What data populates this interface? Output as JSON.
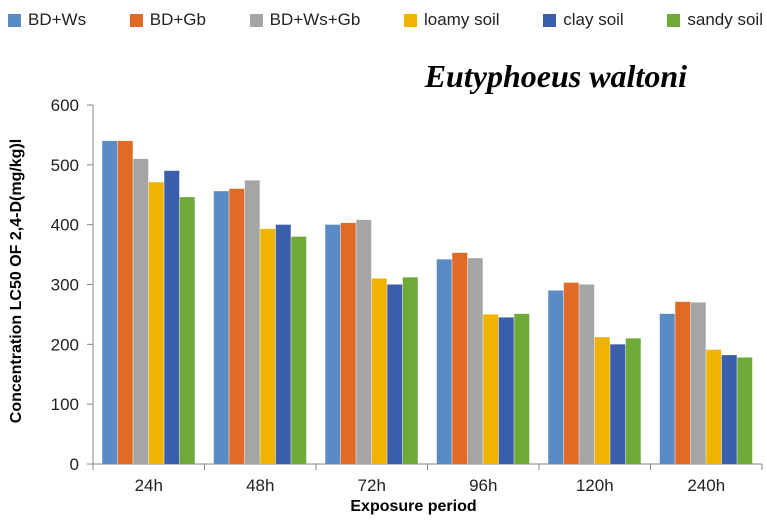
{
  "chart_data": {
    "type": "bar",
    "title": "Eutyphoeus waltoni",
    "xlabel": "Exposure period",
    "ylabel": "Concentration LC50 OF 2,4-D(mg/kg)l",
    "ylim": [
      0,
      600
    ],
    "yticks": [
      "0",
      "100",
      "200",
      "300",
      "400",
      "500",
      "600"
    ],
    "grid": false,
    "legend_position": "top",
    "categories": [
      "24h",
      "48h",
      "72h",
      "96h",
      "120h",
      "240h"
    ],
    "series": [
      {
        "name": "BD+Ws",
        "color": "#5B8BC4",
        "values": [
          540,
          456,
          400,
          342,
          290,
          251
        ]
      },
      {
        "name": "BD+Gb",
        "color": "#E06A26",
        "values": [
          540,
          460,
          403,
          353,
          303,
          271
        ]
      },
      {
        "name": "BD+Ws+Gb",
        "color": "#A5A5A5",
        "values": [
          510,
          474,
          408,
          344,
          300,
          270
        ]
      },
      {
        "name": "loamy soil",
        "color": "#F0B400",
        "values": [
          471,
          393,
          310,
          250,
          212,
          191
        ]
      },
      {
        "name": "clay soil",
        "color": "#3B5EAC",
        "values": [
          490,
          400,
          300,
          245,
          200,
          182
        ]
      },
      {
        "name": "sandy soil",
        "color": "#6FAA38",
        "values": [
          446,
          380,
          312,
          251,
          210,
          178
        ]
      }
    ]
  }
}
